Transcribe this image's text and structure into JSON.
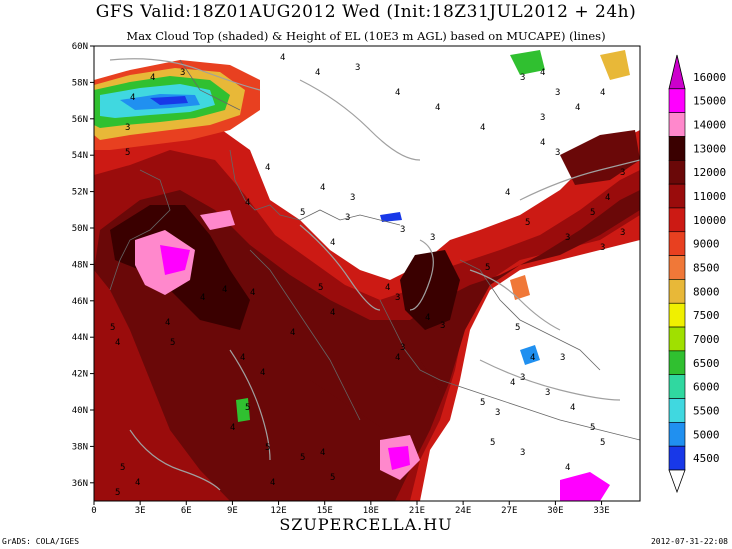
{
  "title": "GFS Valid:18Z01AUG2012 Wed (Init:18Z31JUL2012 + 24h)",
  "subtitle": "Max Cloud Top (shaded) & Height of EL (10E3 m AGL) based on MUCAPE) (lines)",
  "footer": {
    "site": "SZUPERCELLA.HU",
    "credit": "GrADS: COLA/IGES",
    "timestamp": "2012-07-31-22:08"
  },
  "map": {
    "lat_labels": [
      "60N",
      "58N",
      "56N",
      "54N",
      "52N",
      "50N",
      "48N",
      "46N",
      "44N",
      "42N",
      "40N",
      "38N",
      "36N"
    ],
    "lon_labels": [
      "0",
      "3E",
      "6E",
      "9E",
      "12E",
      "15E",
      "18E",
      "21E",
      "24E",
      "27E",
      "30E",
      "33E"
    ],
    "contour_labels": [
      "3",
      "4",
      "5"
    ]
  },
  "legend": {
    "levels": [
      {
        "value": "16000",
        "color": "#cc00cc"
      },
      {
        "value": "15000",
        "color": "#ff00ff"
      },
      {
        "value": "14000",
        "color": "#ff88cc"
      },
      {
        "value": "13000",
        "color": "#3a0000"
      },
      {
        "value": "12000",
        "color": "#6a0808"
      },
      {
        "value": "11000",
        "color": "#9a0c0c"
      },
      {
        "value": "10000",
        "color": "#cc1a14"
      },
      {
        "value": "9000",
        "color": "#e84020"
      },
      {
        "value": "8500",
        "color": "#f07838"
      },
      {
        "value": "8000",
        "color": "#e8b838"
      },
      {
        "value": "7500",
        "color": "#f0f000"
      },
      {
        "value": "7000",
        "color": "#a0e000"
      },
      {
        "value": "6500",
        "color": "#30c030"
      },
      {
        "value": "6000",
        "color": "#30d8a0"
      },
      {
        "value": "5500",
        "color": "#40d8e0"
      },
      {
        "value": "5000",
        "color": "#2090f0"
      },
      {
        "value": "4500",
        "color": "#1838e8"
      }
    ]
  }
}
